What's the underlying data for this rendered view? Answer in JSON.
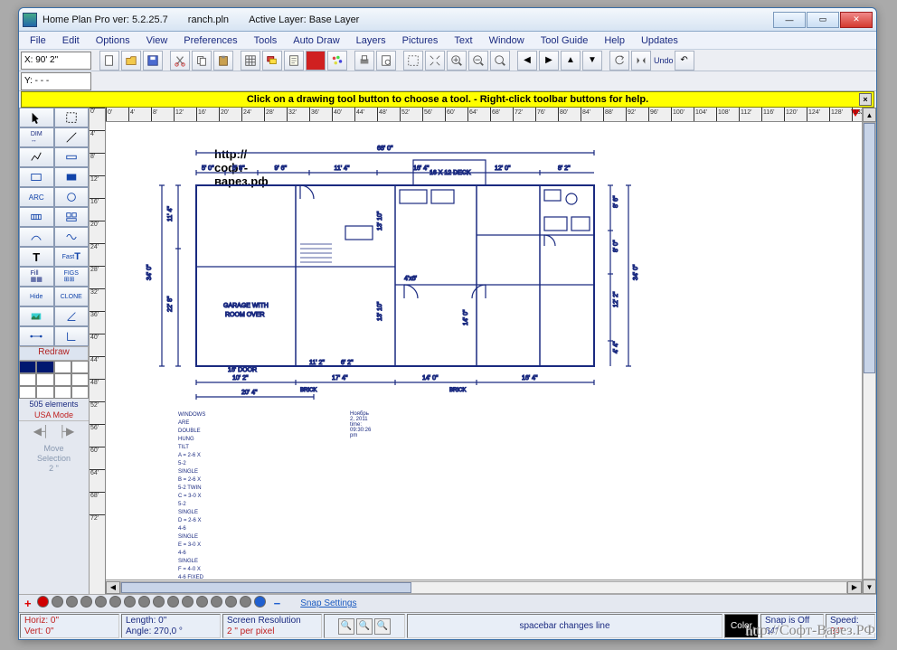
{
  "titlebar": {
    "app": "Home Plan Pro ver: 5.2.25.7",
    "file": "ranch.pln",
    "layer": "Active Layer: Base Layer"
  },
  "menu": [
    "File",
    "Edit",
    "Options",
    "View",
    "Preferences",
    "Tools",
    "Auto Draw",
    "Layers",
    "Pictures",
    "Text",
    "Window",
    "Tool Guide",
    "Help",
    "Updates"
  ],
  "coords": {
    "x": "X: 90' 2\"",
    "y": "Y: - - -"
  },
  "hint": "Click on a drawing tool button to choose a tool.  -  Right-click toolbar buttons for help.",
  "hruler_ticks": [
    "0'",
    "4'",
    "8'",
    "12'",
    "16'",
    "20'",
    "24'",
    "28'",
    "32'",
    "36'",
    "40'",
    "44'",
    "48'",
    "52'",
    "56'",
    "60'",
    "64'",
    "68'",
    "72'",
    "76'",
    "80'",
    "84'",
    "88'",
    "92'",
    "96'",
    "100'",
    "104'",
    "108'",
    "112'",
    "116'",
    "120'",
    "124'",
    "128'",
    "132'"
  ],
  "vruler_ticks": [
    "0'",
    "4'",
    "8'",
    "12'",
    "16'",
    "20'",
    "24'",
    "28'",
    "32'",
    "36'",
    "40'",
    "44'",
    "48'",
    "52'",
    "56'",
    "60'",
    "64'",
    "68'",
    "72'"
  ],
  "left": {
    "redraw": "Redraw",
    "elements": "505 elements",
    "mode": "USA Mode",
    "move": "Move\nSelection\n2 \""
  },
  "plan": {
    "url": "http://софт-варез.рф",
    "overall_w": "68' 0\"",
    "overall_h": "34' 0\"",
    "deck": "16 X 12 DECK",
    "top_dims": [
      "5' 0\"",
      "5' 8\"",
      "9' 6\"",
      "11' 4\"",
      "16' 4\"",
      "12' 0\"",
      "8' 2\""
    ],
    "left_dims": [
      "11' 4\"",
      "22' 8\""
    ],
    "right_dims": [
      "8' 6\"",
      "8' 0\"",
      "12' 2\"",
      "4' 4\""
    ],
    "mid_v": [
      "13' 10\"",
      "13' 10\"",
      "14' 0\""
    ],
    "bottom_dims": [
      "10' 2\"",
      "17' 4\"",
      "14' 0\"",
      "16' 4\""
    ],
    "bottom2": "20' 4\"",
    "garage": "GARAGE WITH\nROOM OVER",
    "door16": "16' DOOR",
    "brick": "BRICK",
    "inner": [
      "6' 2\"",
      "11' 2\"",
      "4'x6'"
    ],
    "notes_title": "WINDOWS ARE DOUBLE HUNG TILT",
    "notes": [
      "A = 2-6 X 5-2 SINGLE",
      "B = 2-6 X 5-2 TWIN",
      "C = 3-0 X 5-2 SINGLE",
      "D = 2-6 X 4-6 SINGLE",
      "E = 3-0 X 4-6 SINGLE",
      "F = 4-0 X 4-6 FIXED"
    ],
    "date": "Ноябрь 2, 2011",
    "time": "time: 09:30:26 pm"
  },
  "layers": {
    "colors": [
      "#d00000",
      "#808080",
      "#808080",
      "#808080",
      "#808080",
      "#808080",
      "#808080",
      "#808080",
      "#808080",
      "#808080",
      "#808080",
      "#808080",
      "#808080",
      "#808080",
      "#808080",
      "#2060d0"
    ],
    "snap": "Snap Settings"
  },
  "status": {
    "horiz": "Horiz:  0\"",
    "vert": "Vert:   0\"",
    "length": "Length:   0\"",
    "angle": "Angle:  270,0 °",
    "res1": "Screen Resolution",
    "res2": "2 \" per pixel",
    "hint": "spacebar changes line",
    "color": "Color",
    "snap1": "Snap is Off",
    "snap2": "64\"",
    "speed1": "Speed:",
    "speed2": "24\""
  },
  "watermark": "http://Софт-Варез.РФ"
}
